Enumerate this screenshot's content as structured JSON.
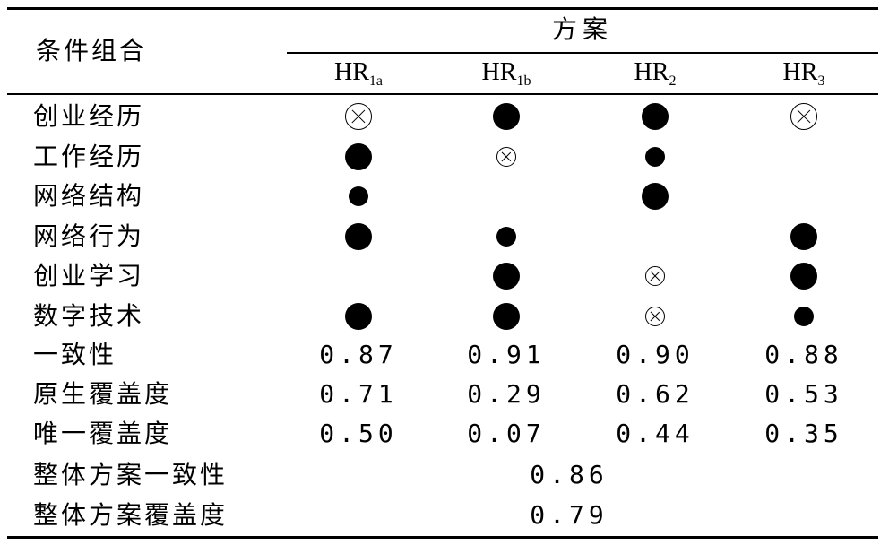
{
  "table": {
    "corner_label": "条件组合",
    "group_header": "方案",
    "columns": [
      {
        "base": "HR",
        "sub": "1a"
      },
      {
        "base": "HR",
        "sub": "1b"
      },
      {
        "base": "HR",
        "sub": "2"
      },
      {
        "base": "HR",
        "sub": "3"
      }
    ],
    "condition_rows": [
      {
        "label": "创业经历",
        "cells": [
          "absent-core",
          "present-core",
          "present-core",
          "absent-core"
        ]
      },
      {
        "label": "工作经历",
        "cells": [
          "present-core",
          "absent-peripheral",
          "present-peripheral",
          ""
        ]
      },
      {
        "label": "网络结构",
        "cells": [
          "present-peripheral",
          "",
          "present-core",
          ""
        ]
      },
      {
        "label": "网络行为",
        "cells": [
          "present-core",
          "present-peripheral",
          "",
          "present-core"
        ]
      },
      {
        "label": "创业学习",
        "cells": [
          "",
          "present-core",
          "absent-peripheral",
          "present-core"
        ]
      },
      {
        "label": "数字技术",
        "cells": [
          "present-core",
          "present-core",
          "absent-peripheral",
          "present-peripheral"
        ]
      }
    ],
    "metric_rows": [
      {
        "label": "一致性",
        "values": [
          "0.87",
          "0.91",
          "0.90",
          "0.88"
        ]
      },
      {
        "label": "原生覆盖度",
        "values": [
          "0.71",
          "0.29",
          "0.62",
          "0.53"
        ]
      },
      {
        "label": "唯一覆盖度",
        "values": [
          "0.50",
          "0.07",
          "0.44",
          "0.35"
        ]
      }
    ],
    "overall_rows": [
      {
        "label": "整体方案一致性",
        "value": "0.86"
      },
      {
        "label": "整体方案覆盖度",
        "value": "0.79"
      }
    ]
  }
}
